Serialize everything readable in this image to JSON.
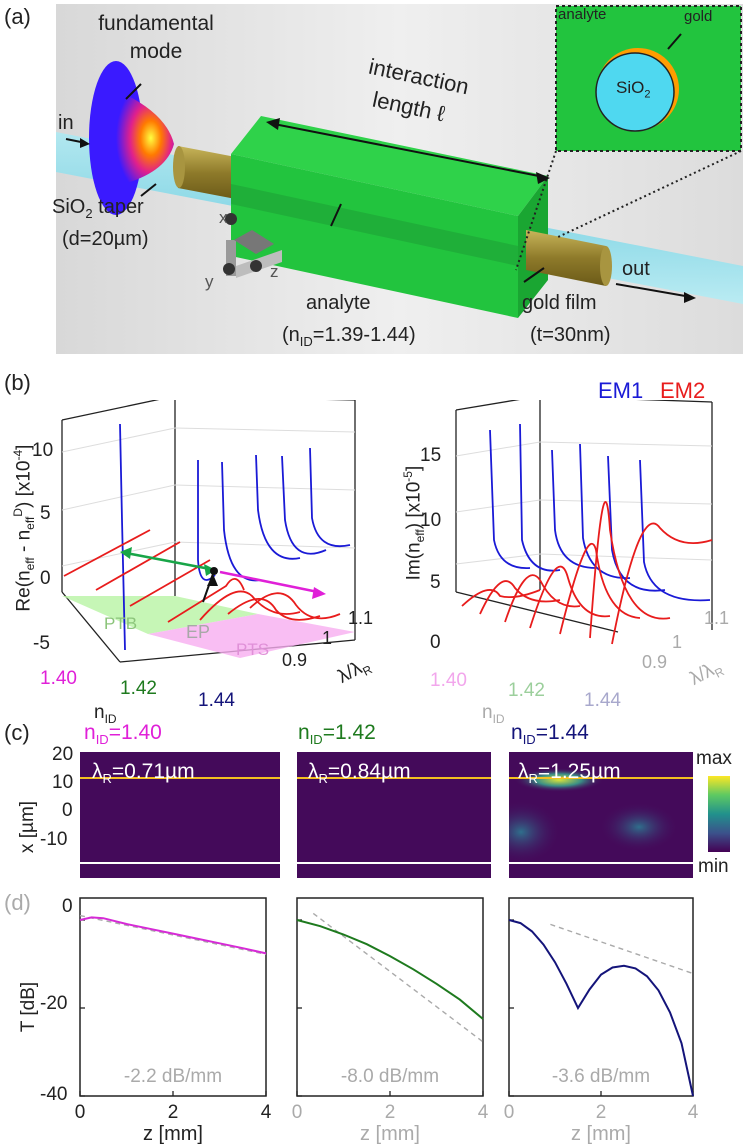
{
  "panel_a": {
    "letter": "(a)",
    "fundamental_mode": "fundamental mode",
    "in_label": "in",
    "out_label": "out",
    "taper_label": "SiO₂ taper",
    "taper_d": "(d=20µm)",
    "interaction": "interaction",
    "length": "length ℓ",
    "analyte_label": "analyte",
    "analyte_n": "(n_ID=1.39-1.44)",
    "gold_label": "gold film",
    "gold_t": "(t=30nm)",
    "inset_analyte": "analyte",
    "inset_gold": "gold",
    "inset_core": "SiO₂",
    "axis_x": "x",
    "axis_y": "y",
    "axis_z": "z"
  },
  "panel_b": {
    "letter": "(b)",
    "legend_em1": "EM1",
    "legend_em2": "EM2",
    "legend_em1_color": "#1a1ad6",
    "legend_em2_color": "#e81c1c",
    "left_ylabel": "Re(n_eff - n_eff^D) [x10^-4]",
    "left_yticks": [
      "10",
      "5",
      "0",
      "-5"
    ],
    "right_ylabel": "Im(n_eff) [x10^-5]",
    "right_yticks": [
      "15",
      "10",
      "5",
      "0"
    ],
    "x_ticks": [
      "1.40",
      "1.42",
      "1.44"
    ],
    "x_tick_colors": [
      "#e020d8",
      "#1e7a1e",
      "#14147a"
    ],
    "xlabel": "n_ID",
    "lambda_ticks": [
      "0.9",
      "1",
      "1.1"
    ],
    "lambda_label": "λ/λ_R",
    "region_ptb": "PTB",
    "region_pts": "PTS",
    "ep_label": "EP"
  },
  "panel_c": {
    "letter": "(c)",
    "titles": [
      "n_ID=1.40",
      "n_ID=1.42",
      "n_ID=1.44"
    ],
    "title_colors": [
      "#e020d8",
      "#1e7a1e",
      "#14147a"
    ],
    "lambdas": [
      "λ_R=0.71µm",
      "λ_R=0.84µm",
      "λ_R=1.25µm"
    ],
    "ylabel": "x [µm]",
    "yticks": [
      "20",
      "10",
      "0",
      "-10"
    ],
    "colorbar_max": "max",
    "colorbar_min": "min"
  },
  "panel_d": {
    "letter": "(d)",
    "ylabel": "T [dB]",
    "yticks": [
      "0",
      "-20",
      "-40"
    ],
    "xticks": [
      "0",
      "2",
      "4"
    ],
    "xlabel": "z [mm]",
    "slopes": [
      "-2.2 dB/mm",
      "-8.0 dB/mm",
      "-3.6 dB/mm"
    ],
    "line_colors": [
      "#d62ad6",
      "#1e7a1e",
      "#14147a"
    ]
  },
  "chart_data": [
    {
      "type": "line",
      "title": "",
      "xlabel": "z [mm]",
      "ylabel": "T [dB]",
      "xlim": [
        0,
        4
      ],
      "ylim": [
        -40,
        5
      ],
      "series": [
        {
          "name": "n_ID=1.40",
          "x": [
            0,
            0.25,
            0.5,
            1,
            1.5,
            2,
            2.5,
            3,
            3.5,
            4
          ],
          "values": [
            0,
            0.6,
            0.4,
            -0.9,
            -2.0,
            -3.1,
            -4.2,
            -5.3,
            -6.4,
            -7.6
          ]
        }
      ],
      "annotations": [
        "-2.2 dB/mm"
      ]
    },
    {
      "type": "line",
      "title": "",
      "xlabel": "z [mm]",
      "ylabel": "T [dB]",
      "xlim": [
        0,
        4
      ],
      "ylim": [
        -40,
        5
      ],
      "series": [
        {
          "name": "n_ID=1.42",
          "x": [
            0,
            0.5,
            1,
            1.5,
            2,
            2.5,
            3,
            3.5,
            4
          ],
          "values": [
            0,
            -1.4,
            -3.3,
            -5.5,
            -8.2,
            -11.2,
            -14.5,
            -18.1,
            -22.5
          ]
        }
      ],
      "annotations": [
        "-8.0 dB/mm"
      ]
    },
    {
      "type": "line",
      "title": "",
      "xlabel": "z [mm]",
      "ylabel": "T [dB]",
      "xlim": [
        0,
        4
      ],
      "ylim": [
        -40,
        5
      ],
      "series": [
        {
          "name": "n_ID=1.44",
          "x": [
            0,
            0.25,
            0.5,
            0.75,
            1,
            1.25,
            1.5,
            1.75,
            2,
            2.25,
            2.5,
            2.75,
            3,
            3.25,
            3.5,
            3.75,
            4
          ],
          "values": [
            0,
            -0.7,
            -2.6,
            -5.6,
            -9.6,
            -14.5,
            -20.0,
            -15.8,
            -12.4,
            -10.8,
            -10.4,
            -11.0,
            -12.8,
            -16.0,
            -21.0,
            -28.0,
            -40.0
          ]
        }
      ],
      "annotations": [
        "-3.6 dB/mm"
      ]
    }
  ]
}
